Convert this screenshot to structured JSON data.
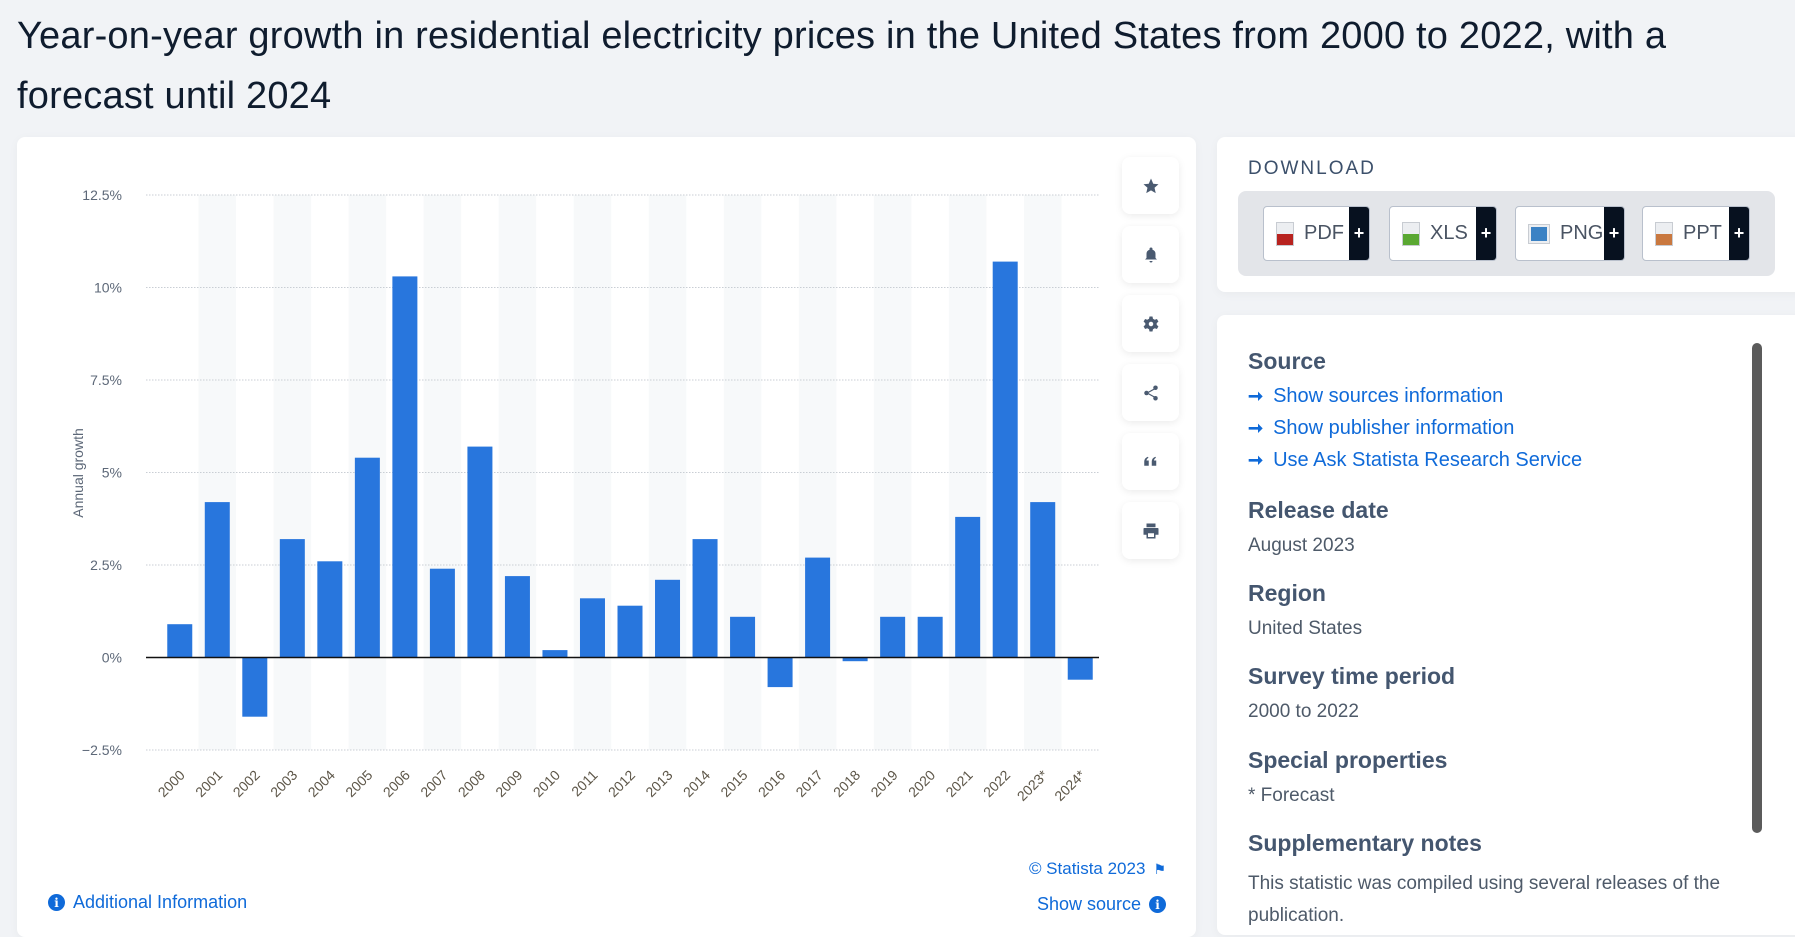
{
  "title": "Year-on-year growth in residential electricity prices in the United States from 2000 to 2022, with a forecast until 2024",
  "chart_data": {
    "type": "bar",
    "title": "",
    "xlabel": "",
    "ylabel": "Annual growth",
    "ylim": [
      -2.5,
      12.5
    ],
    "yticks": [
      -2.5,
      0,
      2.5,
      5,
      7.5,
      10,
      12.5
    ],
    "ytick_labels": [
      "−2.5%",
      "0%",
      "2.5%",
      "5%",
      "7.5%",
      "10%",
      "12.5%"
    ],
    "categories": [
      "2000",
      "2001",
      "2002",
      "2003",
      "2004",
      "2005",
      "2006",
      "2007",
      "2008",
      "2009",
      "2010",
      "2011",
      "2012",
      "2013",
      "2014",
      "2015",
      "2016",
      "2017",
      "2018",
      "2019",
      "2020",
      "2021",
      "2022",
      "2023*",
      "2024*"
    ],
    "values": [
      0.9,
      4.2,
      -1.6,
      3.2,
      2.6,
      5.4,
      10.3,
      2.4,
      5.7,
      2.2,
      0.2,
      1.6,
      1.4,
      2.1,
      3.2,
      1.1,
      -0.8,
      2.7,
      -0.1,
      1.1,
      1.1,
      3.8,
      10.7,
      4.2,
      -0.6
    ],
    "unit": "%",
    "grid": true,
    "bar_color": "#2876dd"
  },
  "chart_footer": {
    "copyright": "© Statista 2023",
    "additional_info": "Additional Information",
    "show_source": "Show source"
  },
  "tools": [
    "star-icon",
    "bell-icon",
    "gear-icon",
    "share-icon",
    "quote-icon",
    "print-icon"
  ],
  "download": {
    "title": "DOWNLOAD",
    "buttons": [
      {
        "label": "PDF",
        "color": "#b8231f"
      },
      {
        "label": "XLS",
        "color": "#5aa832"
      },
      {
        "label": "PNG",
        "color": "#3b82c4"
      },
      {
        "label": "PPT",
        "color": "#c9783f"
      }
    ],
    "plus": "+"
  },
  "info": {
    "source_heading": "Source",
    "links": [
      "Show sources information",
      "Show publisher information",
      "Use Ask Statista Research Service"
    ],
    "release_heading": "Release date",
    "release_value": "August 2023",
    "region_heading": "Region",
    "region_value": "United States",
    "period_heading": "Survey time period",
    "period_value": "2000 to 2022",
    "special_heading": "Special properties",
    "special_value": "* Forecast",
    "notes_heading": "Supplementary notes",
    "notes_value": "This statistic was compiled using several releases of the publication."
  }
}
